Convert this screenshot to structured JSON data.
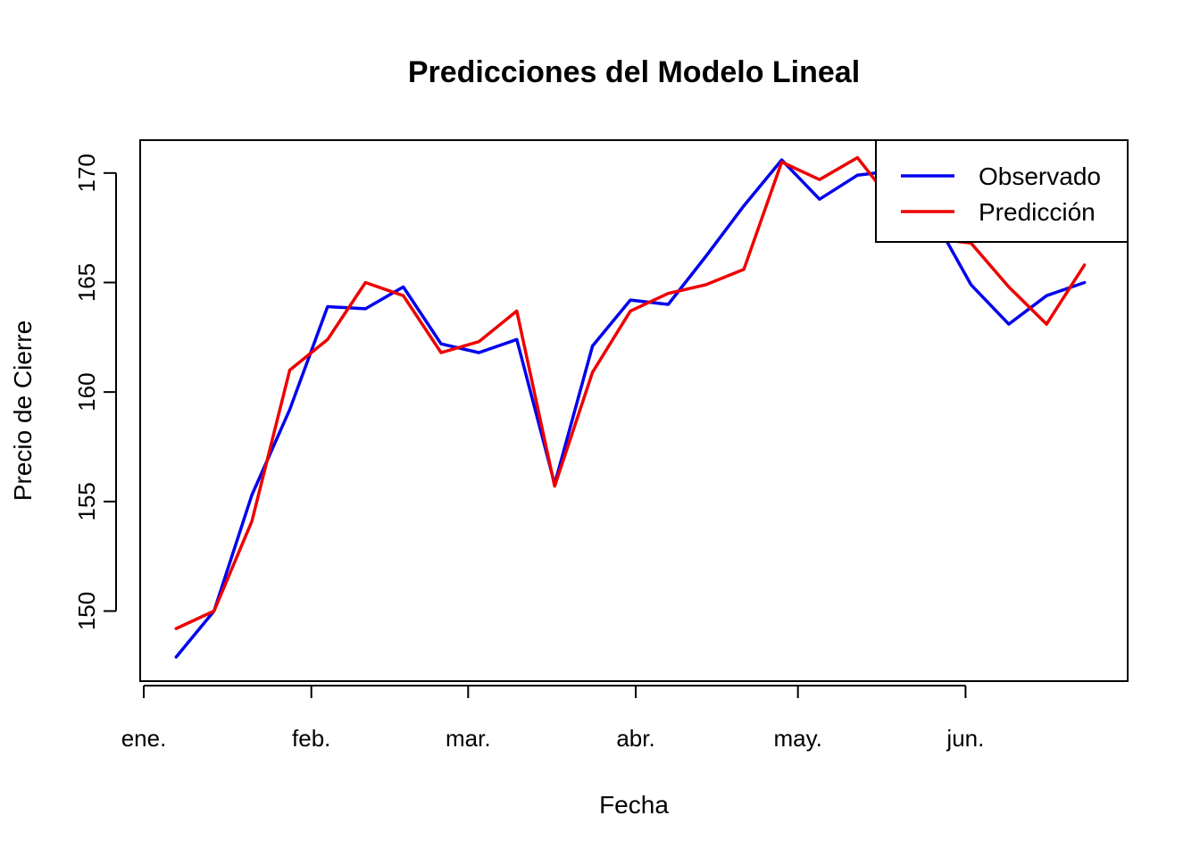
{
  "chart_data": {
    "type": "line",
    "title": "Predicciones del Modelo Lineal",
    "xlabel": "Fecha",
    "ylabel": "Precio de Cierre",
    "ylim": [
      146.8,
      171.5
    ],
    "xlim": [
      "2024-01-01",
      "2024-06-30"
    ],
    "yticks": [
      150,
      155,
      160,
      165,
      170
    ],
    "xticks": [
      {
        "date": "2024-01-01",
        "label": "ene."
      },
      {
        "date": "2024-02-01",
        "label": "feb."
      },
      {
        "date": "2024-03-01",
        "label": "mar."
      },
      {
        "date": "2024-04-01",
        "label": "abr."
      },
      {
        "date": "2024-05-01",
        "label": "may."
      },
      {
        "date": "2024-06-01",
        "label": "jun."
      }
    ],
    "x": [
      "2024-01-07",
      "2024-01-14",
      "2024-01-21",
      "2024-01-28",
      "2024-02-04",
      "2024-02-11",
      "2024-02-18",
      "2024-02-25",
      "2024-03-03",
      "2024-03-10",
      "2024-03-17",
      "2024-03-24",
      "2024-03-31",
      "2024-04-07",
      "2024-04-14",
      "2024-04-21",
      "2024-04-28",
      "2024-05-05",
      "2024-05-12",
      "2024-05-19",
      "2024-05-26",
      "2024-06-02",
      "2024-06-09",
      "2024-06-16",
      "2024-06-23"
    ],
    "series": [
      {
        "name": "Observado",
        "color": "#0000ee",
        "values": [
          147.9,
          150.0,
          155.3,
          159.2,
          163.9,
          163.8,
          164.8,
          162.2,
          161.8,
          162.4,
          155.8,
          162.1,
          164.2,
          164.0,
          166.2,
          168.5,
          170.6,
          168.8,
          169.9,
          170.1,
          168.0,
          164.9,
          163.1,
          164.4,
          165.0
        ]
      },
      {
        "name": "Predicción",
        "color": "#ee0000",
        "values": [
          149.2,
          150.0,
          154.1,
          161.0,
          162.4,
          165.0,
          164.4,
          161.8,
          162.3,
          163.7,
          155.7,
          160.9,
          163.7,
          164.5,
          164.9,
          165.6,
          170.5,
          169.7,
          170.7,
          168.5,
          167.0,
          166.8,
          164.8,
          163.1,
          165.8
        ]
      }
    ],
    "legend": "top-right",
    "grid": false
  }
}
